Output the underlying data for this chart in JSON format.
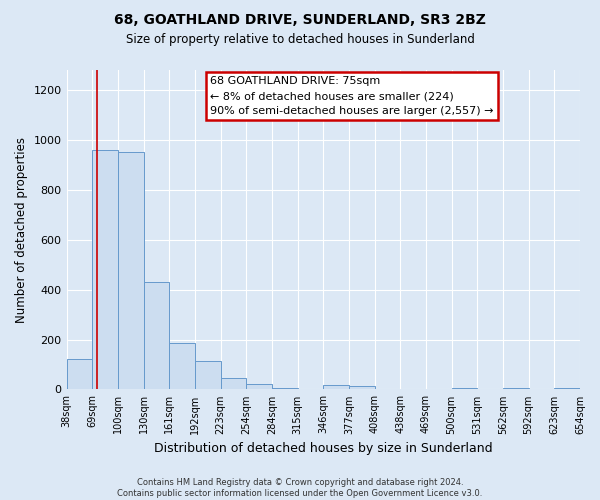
{
  "title": "68, GOATHLAND DRIVE, SUNDERLAND, SR3 2BZ",
  "subtitle": "Size of property relative to detached houses in Sunderland",
  "xlabel": "Distribution of detached houses by size in Sunderland",
  "ylabel": "Number of detached properties",
  "bin_labels": [
    "38sqm",
    "69sqm",
    "100sqm",
    "130sqm",
    "161sqm",
    "192sqm",
    "223sqm",
    "254sqm",
    "284sqm",
    "315sqm",
    "346sqm",
    "377sqm",
    "408sqm",
    "438sqm",
    "469sqm",
    "500sqm",
    "531sqm",
    "562sqm",
    "592sqm",
    "623sqm",
    "654sqm"
  ],
  "bar_values": [
    120,
    960,
    950,
    430,
    185,
    115,
    47,
    22,
    5,
    0,
    18,
    15,
    2,
    0,
    0,
    5,
    0,
    5,
    0,
    5,
    0
  ],
  "bar_color": "#ccddf0",
  "bar_edge_color": "#6699cc",
  "red_line_x": 1.18,
  "annotation_title": "68 GOATHLAND DRIVE: 75sqm",
  "annotation_line1": "← 8% of detached houses are smaller (224)",
  "annotation_line2": "90% of semi-detached houses are larger (2,557) →",
  "annotation_box_facecolor": "#ffffff",
  "annotation_box_edgecolor": "#cc0000",
  "red_line_color": "#cc0000",
  "ylim": [
    0,
    1280
  ],
  "yticks": [
    0,
    200,
    400,
    600,
    800,
    1000,
    1200
  ],
  "footer_line1": "Contains HM Land Registry data © Crown copyright and database right 2024.",
  "footer_line2": "Contains public sector information licensed under the Open Government Licence v3.0.",
  "fig_facecolor": "#dce8f5",
  "plot_facecolor": "#dce8f5",
  "grid_color": "#ffffff"
}
